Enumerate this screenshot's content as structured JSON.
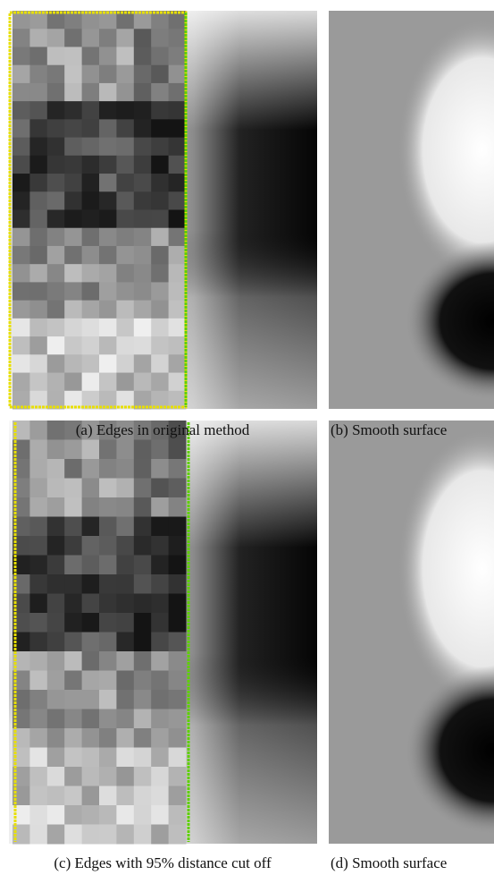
{
  "figure": {
    "panels": [
      {
        "caption": "(a)  Edges in original method"
      },
      {
        "caption": "(b)  Smooth surface"
      },
      {
        "caption": "(c)  Edges with 95% distance cut off"
      },
      {
        "caption": "(d)  Smooth surface"
      }
    ]
  }
}
